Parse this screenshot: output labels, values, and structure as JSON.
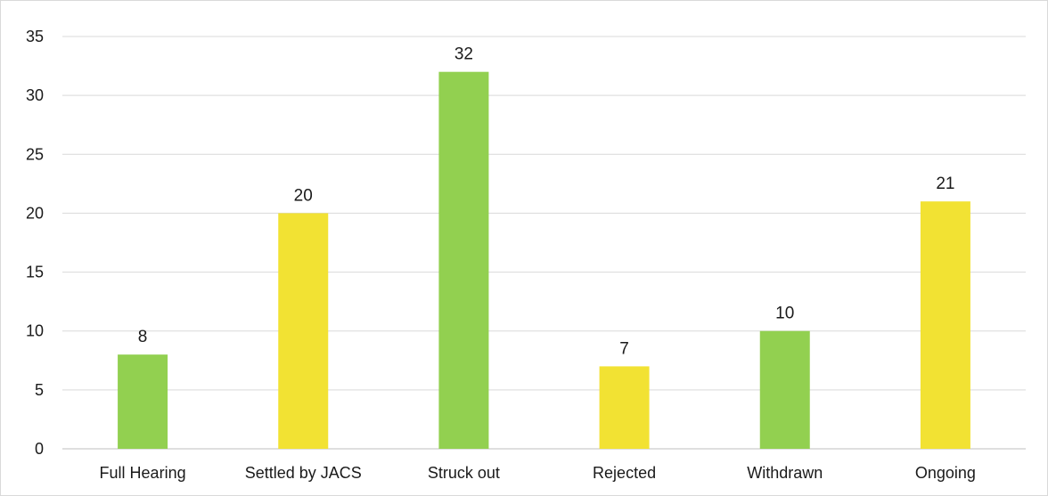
{
  "chart_data": {
    "type": "bar",
    "categories": [
      "Full Hearing",
      "Settled by JACS",
      "Struck out",
      "Rejected",
      "Withdrawn",
      "Ongoing"
    ],
    "values": [
      8,
      20,
      32,
      7,
      10,
      21
    ],
    "bar_colors": [
      "#92d050",
      "#f2e233",
      "#92d050",
      "#f2e233",
      "#92d050",
      "#f2e233"
    ],
    "ylim": [
      0,
      35
    ],
    "yticks": [
      0,
      5,
      10,
      15,
      20,
      25,
      30,
      35
    ],
    "grid": true,
    "legend": "none",
    "data_labels": true
  }
}
